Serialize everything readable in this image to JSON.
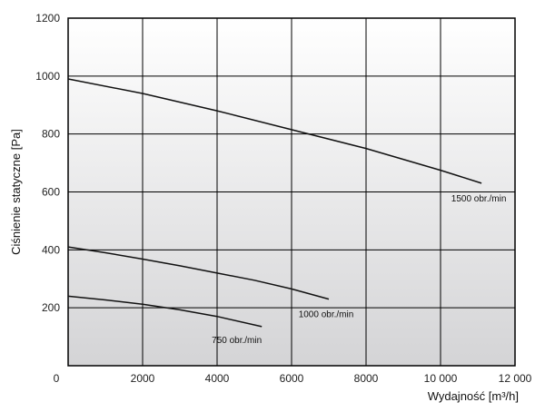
{
  "chart_data": {
    "type": "line",
    "xlabel": "Wydajność [m³/h]",
    "ylabel": "Ciśnienie statyczne [Pa]",
    "xlim": [
      0,
      12000
    ],
    "ylim": [
      0,
      1200
    ],
    "x_ticks": [
      0,
      2000,
      4000,
      6000,
      8000,
      10000,
      12000
    ],
    "x_tick_labels": [
      "0",
      "2000",
      "4000",
      "6000",
      "8000",
      "10 000",
      "12 000"
    ],
    "y_ticks": [
      200,
      400,
      600,
      800,
      1000,
      1200
    ],
    "y_tick_labels": [
      "200",
      "400",
      "600",
      "800",
      "1000",
      "1200"
    ],
    "grid": true,
    "background": "gradient white to light grey",
    "series": [
      {
        "name": "1500 obr./min",
        "x": [
          0,
          2000,
          4000,
          6000,
          8000,
          10000,
          11100
        ],
        "y": [
          990,
          940,
          880,
          815,
          750,
          675,
          630
        ]
      },
      {
        "name": "1000 obr./min",
        "x": [
          0,
          1000,
          2000,
          3000,
          4000,
          5000,
          6000,
          7000
        ],
        "y": [
          410,
          390,
          368,
          345,
          320,
          295,
          265,
          230
        ]
      },
      {
        "name": "750 obr./min",
        "x": [
          0,
          1000,
          2000,
          3000,
          4000,
          5200
        ],
        "y": [
          240,
          227,
          212,
          193,
          170,
          135
        ]
      }
    ]
  }
}
